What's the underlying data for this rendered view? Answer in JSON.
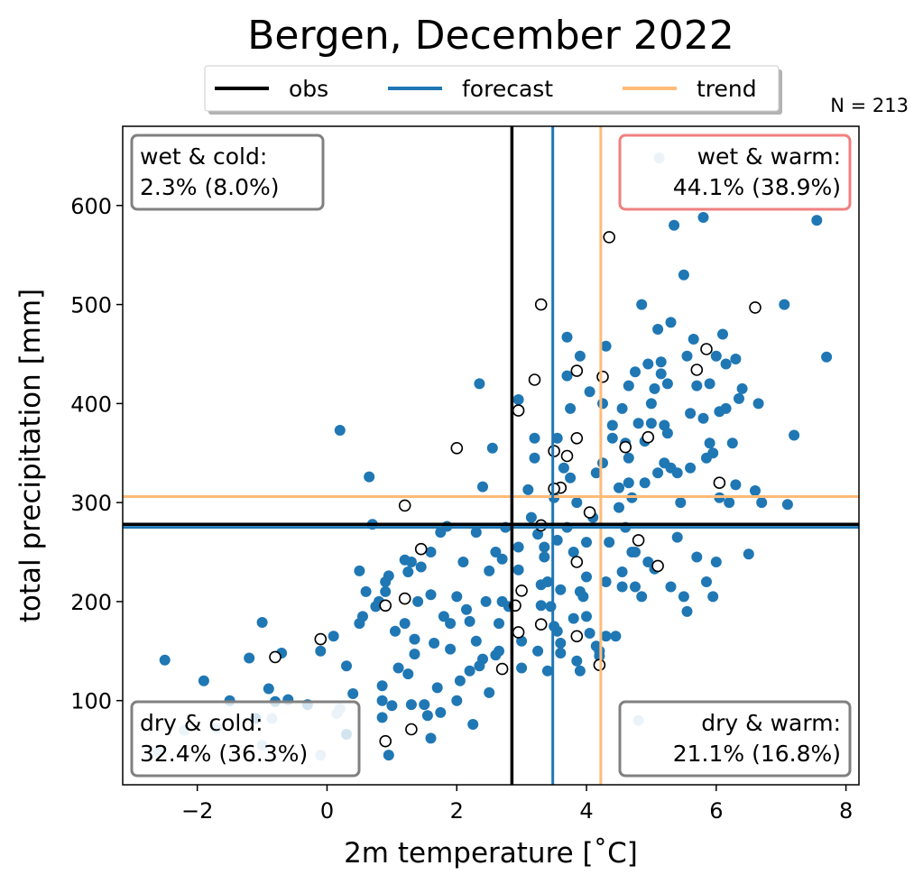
{
  "chart_data": {
    "type": "scatter",
    "title": "Bergen, December 2022",
    "xlabel": "2m temperature [˚C]",
    "ylabel": "total precipitation [mm]",
    "xlim": [
      -3.15,
      8.2
    ],
    "ylim": [
      15,
      680
    ],
    "xticks": [
      -2,
      0,
      2,
      4,
      6,
      8
    ],
    "xtick_labels": [
      "−2",
      "0",
      "2",
      "4",
      "6",
      "8"
    ],
    "yticks": [
      100,
      200,
      300,
      400,
      500,
      600
    ],
    "ytick_labels": [
      "100",
      "200",
      "300",
      "400",
      "500",
      "600"
    ],
    "sample_count_label": "N = 213",
    "legend": [
      {
        "label": "obs",
        "color": "#000000"
      },
      {
        "label": "forecast",
        "color": "#1f77b4"
      },
      {
        "label": "trend",
        "color": "#ffbb78"
      }
    ],
    "reference_lines": {
      "obs": {
        "x": 2.85,
        "y": 278,
        "color": "#000000"
      },
      "forecast": {
        "x": 3.48,
        "y": 275,
        "color": "#1f77b4"
      },
      "trend": {
        "x": 4.22,
        "y": 306,
        "color": "#ffbb78"
      }
    },
    "quadrants": [
      {
        "id": "wet-cold",
        "label": "wet & cold:",
        "value": "2.3% (8.0%)",
        "edge": "#808080",
        "position": "top-left"
      },
      {
        "id": "wet-warm",
        "label": "wet & warm:",
        "value": "44.1% (38.9%)",
        "edge": "#f08080",
        "position": "top-right"
      },
      {
        "id": "dry-cold",
        "label": "dry & cold:",
        "value": "32.4% (36.3%)",
        "edge": "#808080",
        "position": "bottom-left"
      },
      {
        "id": "dry-warm",
        "label": "dry & warm:",
        "value": "21.1% (16.8%)",
        "edge": "#808080",
        "position": "bottom-right"
      }
    ],
    "series": [
      {
        "name": "forecast ensemble",
        "style": "filled",
        "color": "#1f77b4",
        "points": [
          [
            -2.5,
            141
          ],
          [
            -1.9,
            120
          ],
          [
            -1.5,
            100
          ],
          [
            -1.2,
            143
          ],
          [
            -1.0,
            179
          ],
          [
            -0.8,
            99
          ],
          [
            -0.7,
            148
          ],
          [
            -0.6,
            101
          ],
          [
            -1.1,
            82
          ],
          [
            -0.9,
            112
          ],
          [
            -0.3,
            96
          ],
          [
            -0.1,
            150
          ],
          [
            0.1,
            165
          ],
          [
            0.2,
            373
          ],
          [
            0.3,
            66
          ],
          [
            0.4,
            107
          ],
          [
            0.5,
            178
          ],
          [
            0.5,
            231
          ],
          [
            0.6,
            210
          ],
          [
            0.65,
            326
          ],
          [
            0.7,
            278
          ],
          [
            0.75,
            195
          ],
          [
            0.8,
            200
          ],
          [
            0.85,
            115
          ],
          [
            0.85,
            83
          ],
          [
            0.9,
            210
          ],
          [
            0.95,
            226
          ],
          [
            1.0,
            95
          ],
          [
            1.1,
            133
          ],
          [
            1.2,
            178
          ],
          [
            1.25,
            230
          ],
          [
            1.3,
            240
          ],
          [
            1.35,
            162
          ],
          [
            1.35,
            147
          ],
          [
            1.4,
            200
          ],
          [
            1.45,
            235
          ],
          [
            1.5,
            96
          ],
          [
            1.55,
            85
          ],
          [
            1.6,
            250
          ],
          [
            1.6,
            207
          ],
          [
            1.65,
            158
          ],
          [
            1.7,
            113
          ],
          [
            1.75,
            270
          ],
          [
            1.8,
            185
          ],
          [
            1.85,
            276
          ],
          [
            1.9,
            152
          ],
          [
            1.9,
            178
          ],
          [
            2.0,
            100
          ],
          [
            2.0,
            205
          ],
          [
            2.1,
            240
          ],
          [
            2.15,
            192
          ],
          [
            2.2,
            130
          ],
          [
            2.2,
            180
          ],
          [
            2.3,
            160
          ],
          [
            2.3,
            270
          ],
          [
            2.35,
            135
          ],
          [
            2.35,
            420
          ],
          [
            2.4,
            316
          ],
          [
            2.45,
            200
          ],
          [
            2.5,
            108
          ],
          [
            2.5,
            231
          ],
          [
            2.55,
            355
          ],
          [
            2.6,
            146
          ],
          [
            2.65,
            178
          ],
          [
            2.65,
            150
          ],
          [
            2.7,
            200
          ],
          [
            2.75,
            275
          ],
          [
            2.8,
            195
          ],
          [
            2.95,
            404
          ],
          [
            2.95,
            232
          ],
          [
            2.95,
            255
          ],
          [
            3.0,
            133
          ],
          [
            3.1,
            313
          ],
          [
            3.15,
            285
          ],
          [
            3.2,
            365
          ],
          [
            3.2,
            345
          ],
          [
            3.3,
            196
          ],
          [
            3.3,
            217
          ],
          [
            3.35,
            255
          ],
          [
            3.4,
            130
          ],
          [
            3.45,
            195
          ],
          [
            3.5,
            305
          ],
          [
            3.55,
            170
          ],
          [
            3.6,
            212
          ],
          [
            3.6,
            148
          ],
          [
            3.65,
            335
          ],
          [
            3.7,
            467
          ],
          [
            3.7,
            428
          ],
          [
            3.75,
            325
          ],
          [
            3.8,
            250
          ],
          [
            3.8,
            183
          ],
          [
            3.85,
            300
          ],
          [
            3.9,
            130
          ],
          [
            3.9,
            210
          ],
          [
            3.95,
            205
          ],
          [
            4.0,
            185
          ],
          [
            4.0,
            260
          ],
          [
            4.05,
            412
          ],
          [
            4.1,
            285
          ],
          [
            4.15,
            330
          ],
          [
            4.2,
            145
          ],
          [
            4.2,
            150
          ],
          [
            4.25,
            400
          ],
          [
            4.3,
            165
          ],
          [
            4.3,
            458
          ],
          [
            4.35,
            260
          ],
          [
            4.4,
            378
          ],
          [
            4.5,
            315
          ],
          [
            4.55,
            230
          ],
          [
            4.6,
            275
          ],
          [
            4.65,
            418
          ],
          [
            4.65,
            320
          ],
          [
            4.7,
            305
          ],
          [
            4.75,
            250
          ],
          [
            4.8,
            380
          ],
          [
            4.85,
            500
          ],
          [
            4.9,
            362
          ],
          [
            4.95,
            440
          ],
          [
            5.0,
            380
          ],
          [
            5.05,
            415
          ],
          [
            5.1,
            475
          ],
          [
            5.15,
            430
          ],
          [
            5.2,
            378
          ],
          [
            5.25,
            370
          ],
          [
            5.3,
            335
          ],
          [
            5.35,
            580
          ],
          [
            5.4,
            265
          ],
          [
            5.45,
            300
          ],
          [
            5.5,
            530
          ],
          [
            5.55,
            448
          ],
          [
            5.6,
            335
          ],
          [
            5.65,
            465
          ],
          [
            5.7,
            418
          ],
          [
            5.8,
            385
          ],
          [
            5.85,
            345
          ],
          [
            5.9,
            420
          ],
          [
            5.95,
            350
          ],
          [
            6.0,
            448
          ],
          [
            6.05,
            392
          ],
          [
            6.1,
            470
          ],
          [
            6.15,
            440
          ],
          [
            6.2,
            300
          ],
          [
            6.25,
            360
          ],
          [
            6.3,
            318
          ],
          [
            6.35,
            405
          ],
          [
            6.4,
            415
          ],
          [
            6.5,
            248
          ],
          [
            6.6,
            312
          ],
          [
            6.65,
            400
          ],
          [
            6.7,
            300
          ],
          [
            7.05,
            500
          ],
          [
            7.1,
            298
          ],
          [
            7.2,
            368
          ],
          [
            7.55,
            585
          ],
          [
            7.7,
            447
          ],
          [
            4.45,
            165
          ],
          [
            4.55,
            215
          ],
          [
            4.75,
            215
          ],
          [
            4.85,
            205
          ],
          [
            5.5,
            205
          ],
          [
            5.55,
            190
          ],
          [
            5.7,
            245
          ],
          [
            5.85,
            220
          ],
          [
            5.95,
            205
          ],
          [
            6.0,
            240
          ],
          [
            6.05,
            305
          ],
          [
            3.0,
            160
          ],
          [
            3.25,
            150
          ],
          [
            3.5,
            175
          ],
          [
            3.4,
            220
          ],
          [
            3.35,
            245
          ],
          [
            3.6,
            158
          ],
          [
            3.85,
            140
          ],
          [
            4.05,
            168
          ],
          [
            4.15,
            155
          ],
          [
            2.05,
            120
          ],
          [
            2.4,
            142
          ],
          [
            2.25,
            76
          ],
          [
            2.7,
            243
          ],
          [
            1.2,
            242
          ],
          [
            1.05,
            170
          ],
          [
            0.9,
            220
          ],
          [
            0.55,
            185
          ],
          [
            0.3,
            135
          ],
          [
            1.25,
            127
          ],
          [
            1.6,
            62
          ],
          [
            1.75,
            88
          ],
          [
            0.95,
            45
          ],
          [
            0.85,
            100
          ],
          [
            1.3,
            96
          ],
          [
            2.6,
            250
          ],
          [
            3.25,
            268
          ],
          [
            3.7,
            275
          ],
          [
            3.55,
            262
          ],
          [
            4.0,
            225
          ],
          [
            4.3,
            220
          ],
          [
            4.7,
            250
          ],
          [
            4.95,
            240
          ],
          [
            5.05,
            233
          ],
          [
            5.3,
            215
          ],
          [
            5.1,
            330
          ],
          [
            5.2,
            340
          ],
          [
            4.5,
            295
          ],
          [
            4.9,
            320
          ],
          [
            4.25,
            340
          ],
          [
            4.4,
            365
          ],
          [
            4.6,
            360
          ],
          [
            5.4,
            330
          ],
          [
            3.9,
            448
          ],
          [
            4.55,
            395
          ],
          [
            5.0,
            400
          ],
          [
            5.25,
            420
          ],
          [
            3.75,
            395
          ],
          [
            5.8,
            588
          ],
          [
            6.15,
            395
          ],
          [
            6.3,
            445
          ],
          [
            5.3,
            482
          ],
          [
            5.15,
            442
          ],
          [
            4.75,
            432
          ],
          [
            5.9,
            360
          ],
          [
            5.6,
            390
          ],
          [
            4.65,
            345
          ],
          [
            3.55,
            365
          ]
        ]
      },
      {
        "name": "trend ensemble",
        "style": "filled-light",
        "color": "#9bc3e0",
        "points": [
          [
            5.12,
            648
          ],
          [
            -2.6,
            48
          ],
          [
            -1.7,
            72
          ],
          [
            -0.85,
            82
          ],
          [
            0.15,
            87
          ],
          [
            -0.1,
            45
          ],
          [
            -2.2,
            70
          ],
          [
            0.2,
            92
          ],
          [
            -1.0,
            55
          ],
          [
            4.8,
            80
          ]
        ]
      },
      {
        "name": "observed analogues",
        "style": "hollow",
        "color": "#000000",
        "points": [
          [
            4.35,
            568
          ],
          [
            3.3,
            500
          ],
          [
            6.6,
            497
          ],
          [
            5.85,
            455
          ],
          [
            5.7,
            434
          ],
          [
            3.85,
            433
          ],
          [
            4.25,
            427
          ],
          [
            3.2,
            424
          ],
          [
            2.95,
            393
          ],
          [
            3.85,
            365
          ],
          [
            4.95,
            366
          ],
          [
            2.0,
            355
          ],
          [
            4.6,
            356
          ],
          [
            3.5,
            352
          ],
          [
            3.7,
            347
          ],
          [
            6.05,
            320
          ],
          [
            3.6,
            315
          ],
          [
            3.5,
            314
          ],
          [
            1.2,
            297
          ],
          [
            4.05,
            290
          ],
          [
            3.3,
            277
          ],
          [
            4.8,
            262
          ],
          [
            1.45,
            253
          ],
          [
            5.1,
            236
          ],
          [
            3.85,
            240
          ],
          [
            1.2,
            203
          ],
          [
            0.9,
            196
          ],
          [
            2.9,
            196
          ],
          [
            3.0,
            211
          ],
          [
            2.95,
            169
          ],
          [
            3.3,
            177
          ],
          [
            3.85,
            165
          ],
          [
            -0.1,
            162
          ],
          [
            -0.8,
            144
          ],
          [
            4.2,
            136
          ],
          [
            2.7,
            132
          ],
          [
            1.3,
            71
          ],
          [
            0.9,
            59
          ]
        ]
      }
    ]
  }
}
